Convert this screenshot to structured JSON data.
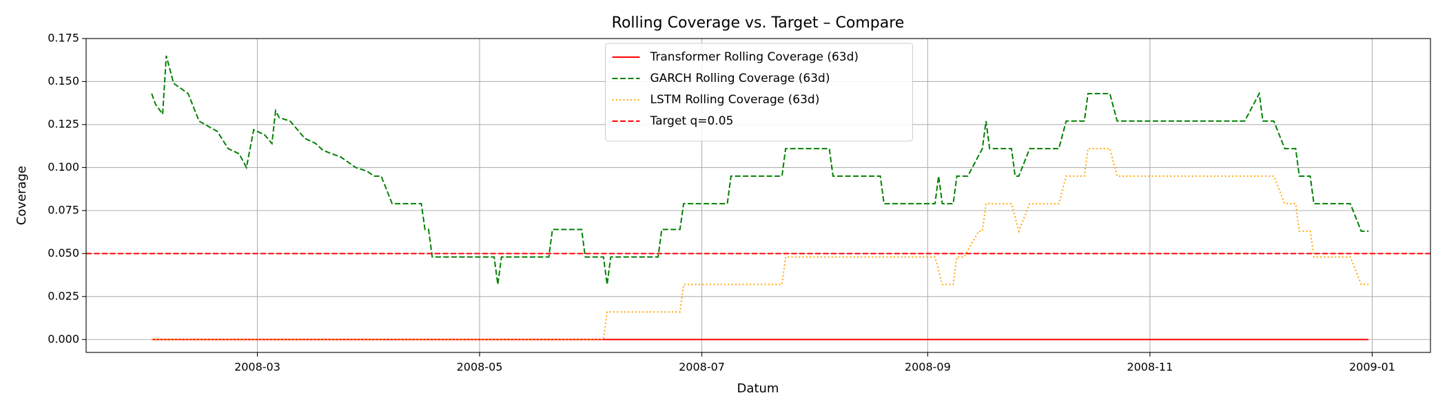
{
  "chart_data": {
    "type": "line",
    "title": "Rolling Coverage vs. Target – Compare",
    "x_label": "Datum",
    "y_label": "Coverage",
    "xlim": [
      "2008-01-14",
      "2009-01-17"
    ],
    "ylim": [
      -0.0075,
      0.175
    ],
    "xticks": [
      {
        "value": "2008-03-01",
        "label": "2008-03"
      },
      {
        "value": "2008-05-01",
        "label": "2008-05"
      },
      {
        "value": "2008-07-01",
        "label": "2008-07"
      },
      {
        "value": "2008-09-01",
        "label": "2008-09"
      },
      {
        "value": "2008-11-01",
        "label": "2008-11"
      },
      {
        "value": "2009-01-01",
        "label": "2009-01"
      }
    ],
    "yticks": [
      {
        "value": 0,
        "label": "0.000"
      },
      0.025,
      {
        "value": 0.05,
        "label": "0.050"
      },
      0.075,
      {
        "value": 0.1,
        "label": "0.100"
      },
      0.125,
      {
        "value": 0.15,
        "label": "0.150"
      },
      0.175
    ],
    "grid": true,
    "legend": "upper center",
    "series": [
      {
        "name": "Transformer Rolling Coverage (63d)",
        "color": "#ff0000",
        "style": "solid",
        "x": [
          "2008-02-01",
          "2008-12-31"
        ],
        "values": [
          0,
          0
        ]
      },
      {
        "name": "GARCH Rolling Coverage (63d)",
        "color": "#008000",
        "style": "dashed",
        "x": [
          "2008-02-01",
          "2008-02-02",
          "2008-02-04",
          "2008-02-05",
          "2008-02-07",
          "2008-02-11",
          "2008-02-14",
          "2008-02-19",
          "2008-02-22",
          "2008-02-25",
          "2008-02-27",
          "2008-02-29",
          "2008-03-03",
          "2008-03-05",
          "2008-03-06",
          "2008-03-07",
          "2008-03-10",
          "2008-03-14",
          "2008-03-17",
          "2008-03-19",
          "2008-03-24",
          "2008-03-28",
          "2008-03-31",
          "2008-04-02",
          "2008-04-04",
          "2008-04-07",
          "2008-04-15",
          "2008-04-16",
          "2008-04-17",
          "2008-04-18",
          "2008-05-05",
          "2008-05-06",
          "2008-05-07",
          "2008-05-20",
          "2008-05-21",
          "2008-05-29",
          "2008-05-30",
          "2008-06-04",
          "2008-06-05",
          "2008-06-06",
          "2008-06-19",
          "2008-06-20",
          "2008-06-25",
          "2008-06-26",
          "2008-07-08",
          "2008-07-09",
          "2008-07-23",
          "2008-07-24",
          "2008-08-05",
          "2008-08-06",
          "2008-08-19",
          "2008-08-20",
          "2008-09-03",
          "2008-09-04",
          "2008-09-05",
          "2008-09-08",
          "2008-09-09",
          "2008-09-12",
          "2008-09-16",
          "2008-09-17",
          "2008-09-18",
          "2008-09-24",
          "2008-09-25",
          "2008-09-26",
          "2008-09-29",
          "2008-10-07",
          "2008-10-09",
          "2008-10-14",
          "2008-10-15",
          "2008-10-21",
          "2008-10-23",
          "2008-11-27",
          "2008-12-01",
          "2008-12-02",
          "2008-12-05",
          "2008-12-08",
          "2008-12-11",
          "2008-12-12",
          "2008-12-15",
          "2008-12-16",
          "2008-12-26",
          "2008-12-29",
          "2008-12-31"
        ],
        "values": [
          0.143,
          0.137,
          0.131,
          0.165,
          0.149,
          0.143,
          0.127,
          0.121,
          0.111,
          0.108,
          0.1,
          0.122,
          0.119,
          0.114,
          0.133,
          0.129,
          0.127,
          0.117,
          0.114,
          0.11,
          0.106,
          0.1,
          0.098,
          0.095,
          0.095,
          0.079,
          0.079,
          0.064,
          0.064,
          0.048,
          0.048,
          0.032,
          0.048,
          0.048,
          0.064,
          0.064,
          0.048,
          0.048,
          0.032,
          0.048,
          0.048,
          0.064,
          0.064,
          0.079,
          0.079,
          0.095,
          0.095,
          0.111,
          0.111,
          0.095,
          0.095,
          0.079,
          0.079,
          0.095,
          0.079,
          0.079,
          0.095,
          0.095,
          0.111,
          0.127,
          0.111,
          0.111,
          0.095,
          0.095,
          0.111,
          0.111,
          0.127,
          0.127,
          0.143,
          0.143,
          0.127,
          0.127,
          0.143,
          0.127,
          0.127,
          0.111,
          0.111,
          0.095,
          0.095,
          0.079,
          0.079,
          0.063,
          0.063
        ]
      },
      {
        "name": "LSTM Rolling Coverage (63d)",
        "color": "#ffa500",
        "style": "dotted",
        "x": [
          "2008-02-01",
          "2008-06-04",
          "2008-06-05",
          "2008-06-25",
          "2008-06-26",
          "2008-07-23",
          "2008-07-24",
          "2008-09-03",
          "2008-09-05",
          "2008-09-08",
          "2008-09-09",
          "2008-09-11",
          "2008-09-15",
          "2008-09-16",
          "2008-09-17",
          "2008-09-24",
          "2008-09-26",
          "2008-09-29",
          "2008-10-07",
          "2008-10-09",
          "2008-10-14",
          "2008-10-15",
          "2008-10-21",
          "2008-10-23",
          "2008-12-05",
          "2008-12-08",
          "2008-12-11",
          "2008-12-12",
          "2008-12-15",
          "2008-12-16",
          "2008-12-26",
          "2008-12-29",
          "2008-12-31"
        ],
        "values": [
          0,
          0,
          0.016,
          0.016,
          0.032,
          0.032,
          0.048,
          0.048,
          0.032,
          0.032,
          0.048,
          0.048,
          0.063,
          0.063,
          0.079,
          0.079,
          0.063,
          0.079,
          0.079,
          0.095,
          0.095,
          0.111,
          0.111,
          0.095,
          0.095,
          0.079,
          0.079,
          0.063,
          0.063,
          0.048,
          0.048,
          0.032,
          0.032
        ]
      },
      {
        "name": "Target q=0.05",
        "color": "#ff0000",
        "style": "dashed",
        "value": 0.05
      }
    ]
  }
}
